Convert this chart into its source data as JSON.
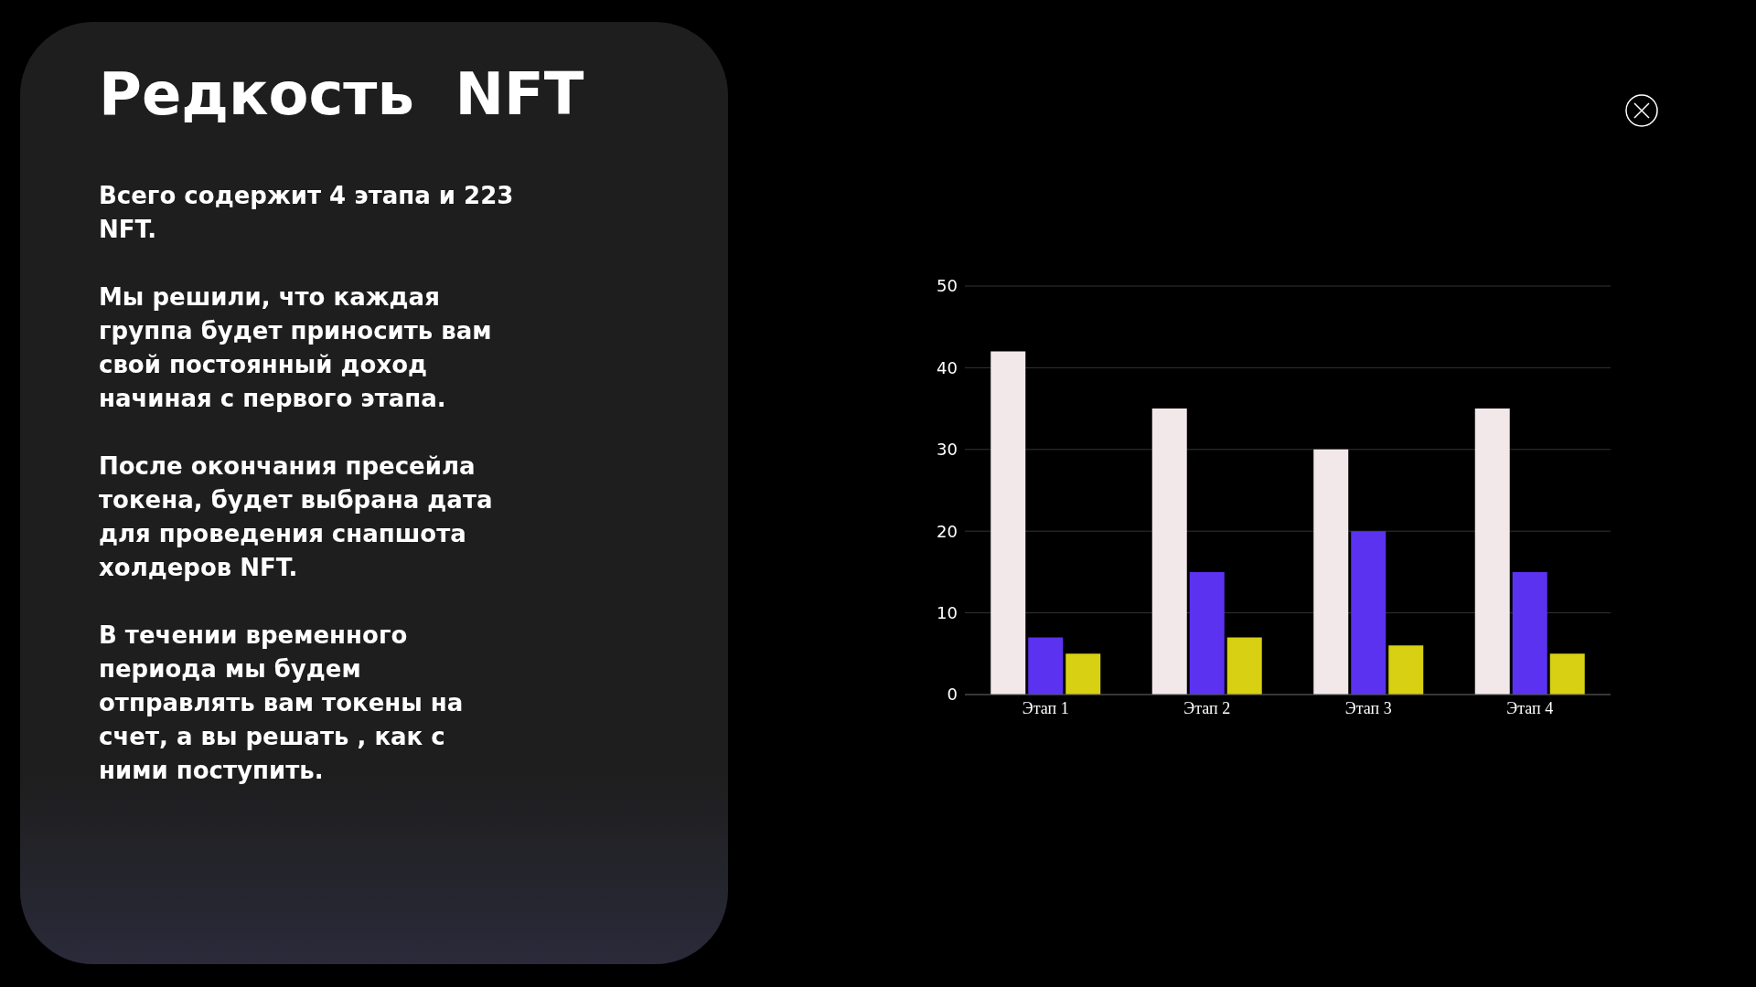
{
  "chart_data": {
    "type": "bar",
    "title": "Редкость  NFT",
    "annotations": [
      "Всего содержит 4 этапа и 223 NFT.",
      "Мы решили, что каждая группа будет приносить вам свой постоянный доход начиная с первого этапа.",
      "После окончания пресейла токена, будет выбрана дата для проведения снапшота холдеров NFT.",
      "В течении временного периода мы будем отправлять вам токены на счет, а вы решать , как с ними поступить."
    ],
    "categories": [
      "Этап 1",
      "Этап 2",
      "Этап 3",
      "Этап 4"
    ],
    "series": [
      {
        "color": "#f2e8ea",
        "values": [
          42,
          35,
          30,
          35
        ]
      },
      {
        "color": "#5b32f0",
        "values": [
          7,
          15,
          20,
          15
        ]
      },
      {
        "color": "#d8d012",
        "values": [
          5,
          7,
          6,
          5
        ]
      }
    ],
    "ylim": [
      0,
      50
    ],
    "yticks": [
      0,
      10,
      20,
      30,
      40,
      50
    ],
    "grid": "y"
  }
}
